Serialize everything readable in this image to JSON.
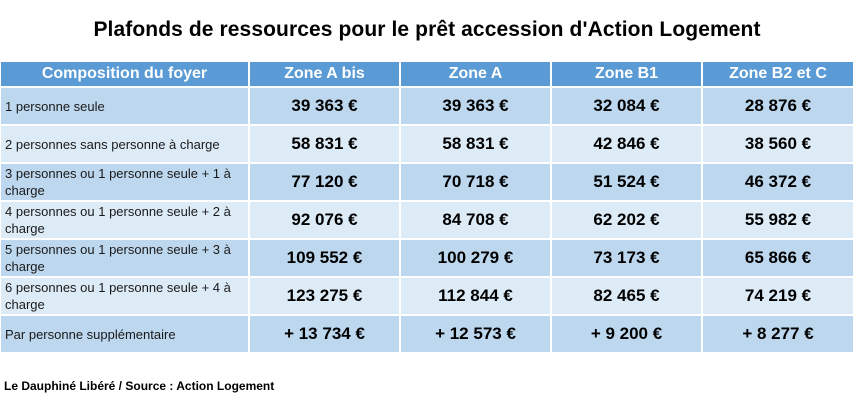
{
  "title": "Plafonds de ressources pour le prêt accession d'Action Logement",
  "table": {
    "headers": [
      "Composition du foyer",
      "Zone A bis",
      "Zone A",
      "Zone B1",
      "Zone B2 et C"
    ],
    "rows": [
      {
        "label": "1 personne seule",
        "values": [
          "39 363 €",
          "39 363 €",
          "32 084 €",
          "28 876 €"
        ]
      },
      {
        "label": "2 personnes sans personne à charge",
        "values": [
          "58 831 €",
          "58 831 €",
          "42 846 €",
          "38 560 €"
        ]
      },
      {
        "label": "3 personnes ou 1 personne seule + 1 à charge",
        "values": [
          "77 120 €",
          "70 718 €",
          "51 524 €",
          "46 372 €"
        ]
      },
      {
        "label": "4 personnes ou 1 personne seule + 2 à charge",
        "values": [
          "92 076 €",
          "84 708 €",
          "62 202 €",
          "55 982 €"
        ]
      },
      {
        "label": "5 personnes ou 1 personne seule + 3 à charge",
        "values": [
          "109 552 €",
          "100 279 €",
          "73 173 €",
          "65 866 €"
        ]
      },
      {
        "label": "6 personnes ou 1 personne seule + 4 à charge",
        "values": [
          "123 275 €",
          "112 844 €",
          "82 465 €",
          "74 219 €"
        ]
      },
      {
        "label": "Par personne supplémentaire",
        "values": [
          "+ 13 734 €",
          "+ 12 573 €",
          "+ 9 200 €",
          "+ 8 277 €"
        ]
      }
    ]
  },
  "footer": "Le Dauphiné Libéré / Source : Action Logement",
  "colors": {
    "header_bg": "#5b9bd5",
    "row_dark": "#bdd7ee",
    "row_light": "#ddebf7"
  }
}
